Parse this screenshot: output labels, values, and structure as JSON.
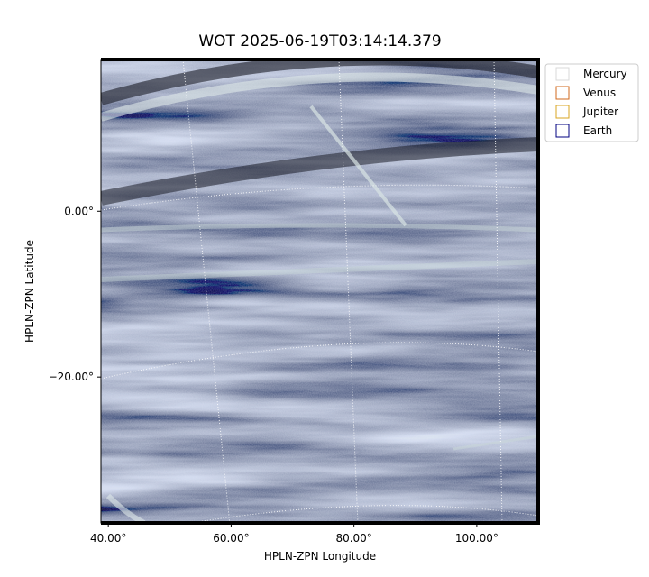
{
  "chart_data": {
    "type": "image",
    "title": "WOT 2025-06-19T03:14:14.379",
    "x_label": "HPLN-ZPN Longitude",
    "y_label": "HPLN-ZPN Latitude",
    "xlim": [
      38.8,
      110
    ],
    "ylim": [
      -37.6,
      18.3
    ],
    "xticks": [
      {
        "value": 40,
        "label": "40.00°"
      },
      {
        "value": 60,
        "label": "60.00°"
      },
      {
        "value": 80,
        "label": "80.00°"
      },
      {
        "value": 100,
        "label": "100.00°"
      }
    ],
    "yticks": [
      {
        "value": 0,
        "label": "0.00°"
      },
      {
        "value": -20,
        "label": "−20.00°"
      }
    ],
    "legend_position": "outside upper right",
    "legend": [
      {
        "name": "Mercury",
        "color": "#d9d9d9"
      },
      {
        "name": "Venus",
        "color": "#d2691e"
      },
      {
        "name": "Jupiter",
        "color": "#daa520"
      },
      {
        "name": "Earth",
        "color": "#000080"
      }
    ]
  }
}
